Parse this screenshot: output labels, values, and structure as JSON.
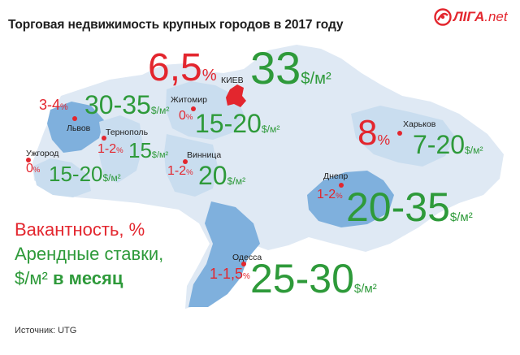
{
  "title": "Торговая недвижимость крупных городов в 2017 году",
  "logo": {
    "text": "ЛIГА",
    "suffix": ".net",
    "icon": "liga-swirl-icon"
  },
  "colors": {
    "vacancy": "#e3262e",
    "rent": "#2e9a3a",
    "region_highlight": "#7fb0dd",
    "region_light": "#c9ddef",
    "country": "#dfe9f4"
  },
  "cities": {
    "kiev": {
      "name": "КИЕВ",
      "vacancy": "6,5",
      "vacancy_unit": "%",
      "rent": "33",
      "rent_unit": "$/м²"
    },
    "zhytomyr": {
      "name": "Житомир",
      "vacancy": "0",
      "vacancy_unit": "%",
      "rent": "15-20",
      "rent_unit": "$/м²"
    },
    "lviv": {
      "name": "Львов",
      "vacancy": "3-4",
      "vacancy_unit": "%",
      "rent": "30-35",
      "rent_unit": "$/м²"
    },
    "ternopil": {
      "name": "Тернополь",
      "vacancy": "1-2",
      "vacancy_unit": "%",
      "rent": "15",
      "rent_unit": "$/м²"
    },
    "uzhhorod": {
      "name": "Ужгород",
      "vacancy": "0",
      "vacancy_unit": "%",
      "rent": "15-20",
      "rent_unit": "$/м²"
    },
    "vinnytsia": {
      "name": "Винница",
      "vacancy": "1-2",
      "vacancy_unit": "%",
      "rent": "20",
      "rent_unit": "$/м²"
    },
    "kharkiv": {
      "name": "Харьков",
      "vacancy": "8",
      "vacancy_unit": "%",
      "rent": "7-20",
      "rent_unit": "$/м²"
    },
    "dnipro": {
      "name": "Днепр",
      "vacancy": "1-2",
      "vacancy_unit": "%",
      "rent": "20-35",
      "rent_unit": "$/м²"
    },
    "odesa": {
      "name": "Одесса",
      "vacancy": "1-1,5",
      "vacancy_unit": "%",
      "rent": "25-30",
      "rent_unit": "$/м²"
    }
  },
  "legend": {
    "vacancy": "Вакантность, %",
    "rent": "Арендные ставки,",
    "rent_unit": "$/м²",
    "per_month": "в месяц"
  },
  "source": "Источник: UTG"
}
